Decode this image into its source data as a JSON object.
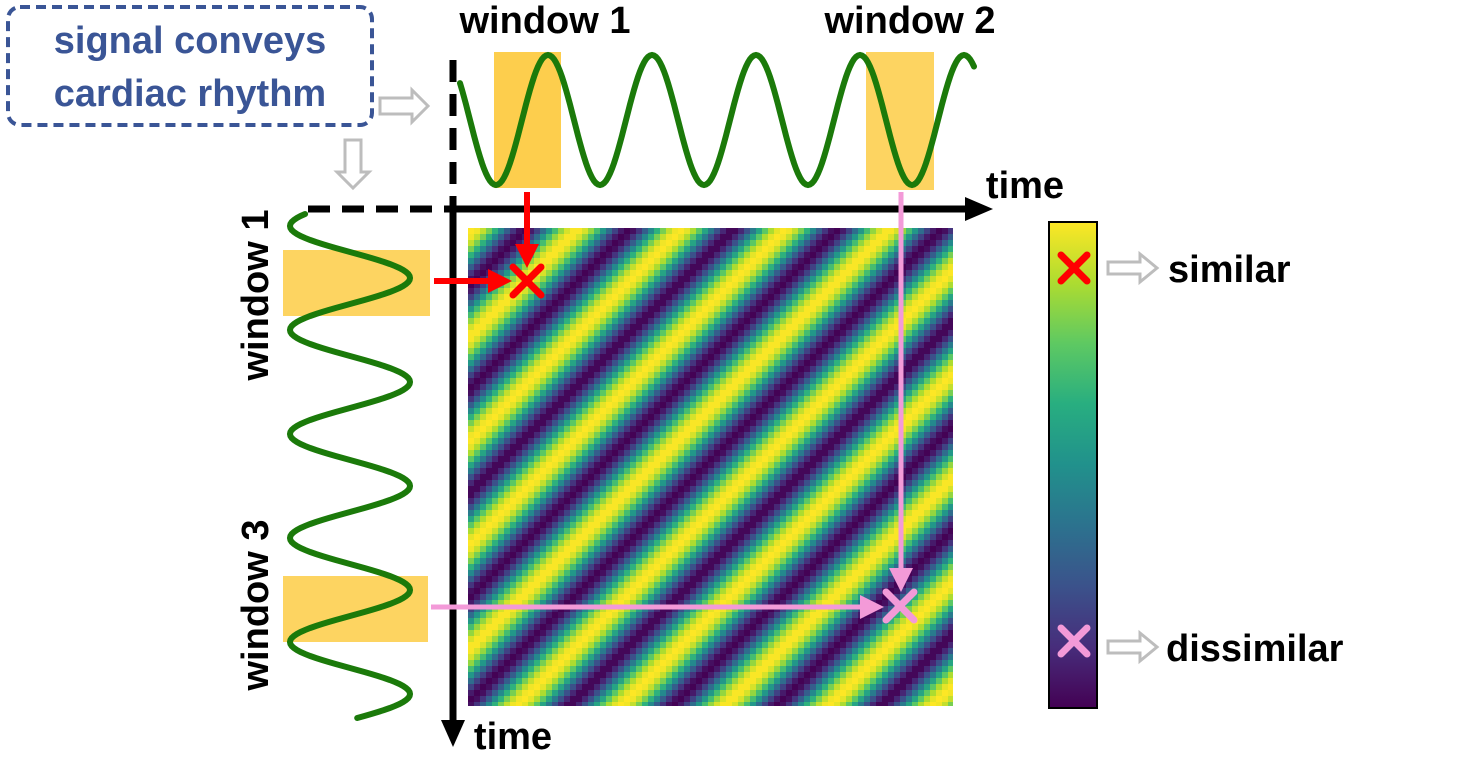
{
  "annotation": {
    "line1": "signal conveys",
    "line2": "cardiac rhythm"
  },
  "top_axis": {
    "label": "time",
    "windows": [
      "window 1",
      "window 2"
    ]
  },
  "left_axis": {
    "label": "time",
    "windows": [
      "window 1",
      "window 3"
    ]
  },
  "legend": {
    "similar": "similar",
    "dissimilar": "dissimilar"
  },
  "colors": {
    "signal": "#1b7a0a",
    "window_highlight": "#fdc93a",
    "similar_marker": "#ff0000",
    "dissimilar_marker": "#f39ad8",
    "annotation_border": "#3a5596",
    "hint_arrow": "#bdbdbd"
  },
  "colormap": "viridis"
}
